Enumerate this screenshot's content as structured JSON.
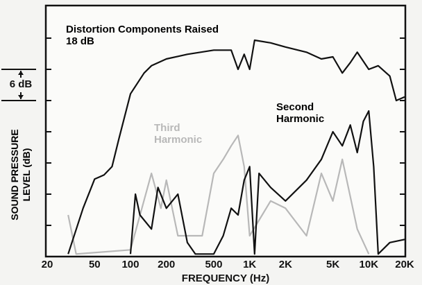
{
  "chart_data": {
    "type": "line",
    "annotation": "Distortion Components Raised 18 dB",
    "scale_label": "6 dB",
    "xlabel": "FREQUENCY (Hz)",
    "ylabel": "SOUND PRESSURE LEVEL (dB)",
    "xscale": "log",
    "xlim": [
      20,
      20000
    ],
    "xticks": [
      20,
      50,
      100,
      200,
      500,
      {
        "value": 1000,
        "label": "1K"
      },
      {
        "value": 2000,
        "label": "2K"
      },
      {
        "value": 5000,
        "label": "5K"
      },
      {
        "value": 10000,
        "label": "10K"
      },
      {
        "value": 20000,
        "label": "20K"
      }
    ],
    "ylim": [
      0,
      48
    ],
    "yticks": [
      6,
      12,
      18,
      24,
      30,
      36,
      42
    ],
    "series": [
      {
        "color": "#111111",
        "x": [
          30,
          40,
          50,
          60,
          70,
          80,
          100,
          130,
          150,
          200,
          300,
          500,
          700,
          800,
          900,
          1000,
          1100,
          1500,
          2000,
          3000,
          4000,
          5000,
          6000,
          7000,
          8000,
          10000,
          12000,
          15000,
          17000,
          20000
        ],
        "values": [
          0.5,
          9.3,
          14.9,
          15.7,
          17.3,
          22.7,
          31.3,
          35.3,
          36.7,
          38,
          38.9,
          39.7,
          39.7,
          36,
          38.9,
          36,
          41.6,
          41.1,
          40.3,
          39.3,
          38,
          38.4,
          35.3,
          37.3,
          39.3,
          36,
          36.7,
          34.7,
          30,
          30.7
        ]
      },
      {
        "name": "Second Harmonic",
        "color": "#111111",
        "x": [
          100,
          110,
          120,
          150,
          170,
          200,
          250,
          300,
          350,
          500,
          600,
          700,
          800,
          900,
          1000,
          1100,
          1200,
          1500,
          2000,
          3000,
          4000,
          5000,
          6000,
          7000,
          8000,
          9000,
          10000,
          11000,
          12000,
          15000,
          20000
        ],
        "values": [
          0.5,
          12,
          8,
          5.3,
          13.3,
          9.3,
          12,
          2.7,
          0.5,
          0.5,
          4,
          9.3,
          8,
          14.7,
          17.3,
          0.5,
          16,
          13.3,
          10.7,
          14.7,
          18.7,
          24,
          21.3,
          25.3,
          20,
          26,
          28,
          17.3,
          0.5,
          2.7,
          3.3
        ]
      },
      {
        "name": "Third Harmonic",
        "color": "#b8b8b8",
        "x": [
          30,
          35,
          100,
          150,
          180,
          200,
          250,
          400,
          500,
          600,
          700,
          800,
          900,
          1000,
          1500,
          2000,
          3000,
          4000,
          5000,
          6000,
          8000,
          10000
        ],
        "values": [
          8,
          0.5,
          1.3,
          16,
          9.3,
          14.7,
          4,
          4,
          16,
          18.7,
          21.3,
          23.3,
          17.3,
          4,
          10.7,
          9.3,
          4,
          16,
          10.7,
          18.7,
          5.3,
          0.5
        ]
      }
    ]
  }
}
